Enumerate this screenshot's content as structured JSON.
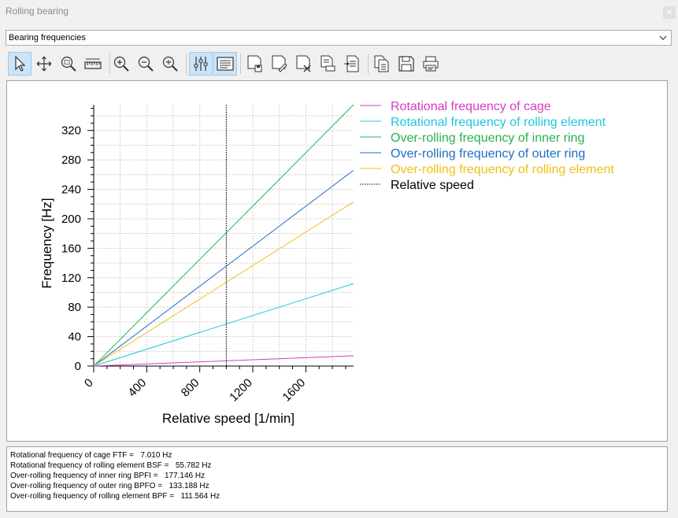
{
  "window": {
    "title": "Rolling bearing"
  },
  "selector": {
    "value": "Bearing frequencies"
  },
  "toolbar": {
    "icons": [
      "pointer-icon",
      "pan-icon",
      "zoom-window-icon",
      "measure-icon",
      "zoom-in-icon",
      "zoom-out-icon",
      "zoom-fit-icon",
      "graph-settings-icon",
      "legend-icon",
      "save-view-icon",
      "edit-view-icon",
      "delete-view-icon",
      "print-setup-icon",
      "export-icon",
      "copy-icon",
      "save-icon",
      "print-icon"
    ]
  },
  "chart_data": {
    "type": "line",
    "xlabel": "Relative speed [1/min]",
    "ylabel": "Frequency [Hz]",
    "xlim": [
      0,
      1960
    ],
    "ylim": [
      0,
      355
    ],
    "xticks": [
      "0",
      "400",
      "800",
      "1200",
      "1600"
    ],
    "yticks": [
      "0",
      "40",
      "80",
      "120",
      "160",
      "200",
      "240",
      "280",
      "320"
    ],
    "grid": true,
    "legend_position": "right",
    "series": [
      {
        "name": "Rotational frequency of cage",
        "color": "#d63cc8",
        "x": [
          0,
          1960
        ],
        "values": [
          0,
          14
        ]
      },
      {
        "name": "Rotational frequency of rolling element",
        "color": "#1ec8e0",
        "x": [
          0,
          1960
        ],
        "values": [
          0,
          112
        ]
      },
      {
        "name": "Over-rolling frequency of inner ring",
        "color": "#28b050",
        "x": [
          0,
          1960
        ],
        "values": [
          0,
          355
        ]
      },
      {
        "name": "Over-rolling frequency of outer ring",
        "color": "#1e6ec0",
        "x": [
          0,
          1960
        ],
        "values": [
          0,
          266
        ]
      },
      {
        "name": "Over-rolling frequency of rolling element",
        "color": "#f0c014",
        "x": [
          0,
          1960
        ],
        "values": [
          0,
          223
        ]
      }
    ],
    "marker": {
      "name": "Relative speed",
      "x": 1000,
      "style": "dotted",
      "color": "#000000"
    }
  },
  "results": [
    {
      "label": "Rotational frequency of cage FTF =",
      "value": "7.010 Hz"
    },
    {
      "label": "Rotational frequency of rolling element BSF =",
      "value": "55.782 Hz"
    },
    {
      "label": "Over-rolling frequency of inner ring BPFI =",
      "value": "177.146 Hz"
    },
    {
      "label": "Over-rolling frequency of outer ring BPFO =",
      "value": "133.188 Hz"
    },
    {
      "label": "Over-rolling frequency of rolling element BPF =",
      "value": "111.564 Hz"
    }
  ]
}
